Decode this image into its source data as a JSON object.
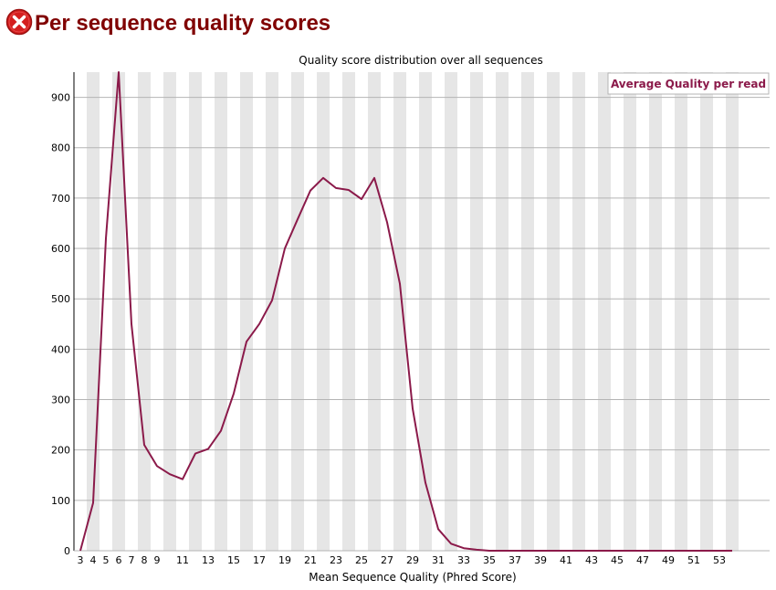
{
  "header": {
    "status_icon": "fail-icon",
    "title": "Per sequence quality scores"
  },
  "colors": {
    "title": "#800000",
    "line": "#8b1a4a",
    "band": "#e6e6e6",
    "grid": "#b4b4b4"
  },
  "chart_data": {
    "type": "line",
    "title": "Quality score distribution over all sequences",
    "xlabel": "Mean Sequence Quality (Phred Score)",
    "ylabel": "",
    "xlim": [
      3,
      54
    ],
    "ylim": [
      0,
      950
    ],
    "grid": true,
    "legend_position": "top-right",
    "x_tick_labels": [
      "3",
      "4",
      "5",
      "6",
      "7",
      "8",
      "9",
      "11",
      "13",
      "15",
      "17",
      "19",
      "21",
      "23",
      "25",
      "27",
      "29",
      "31",
      "33",
      "35",
      "37",
      "39",
      "41",
      "43",
      "45",
      "47",
      "49",
      "51",
      "53"
    ],
    "y_ticks": [
      0,
      100,
      200,
      300,
      400,
      500,
      600,
      700,
      800,
      900
    ],
    "x": [
      3,
      4,
      5,
      6,
      7,
      8,
      9,
      10,
      11,
      12,
      13,
      14,
      15,
      16,
      17,
      18,
      19,
      20,
      21,
      22,
      23,
      24,
      25,
      26,
      27,
      28,
      29,
      30,
      31,
      32,
      33,
      34,
      35,
      36,
      37,
      38,
      39,
      40,
      41,
      42,
      43,
      44,
      45,
      46,
      47,
      48,
      49,
      50,
      51,
      52,
      53,
      54
    ],
    "series": [
      {
        "name": "Average Quality per read",
        "values": [
          0,
          95,
          620,
          950,
          450,
          210,
          168,
          152,
          142,
          193,
          202,
          238,
          312,
          415,
          450,
          497,
          600,
          658,
          715,
          740,
          720,
          716,
          698,
          740,
          652,
          530,
          282,
          135,
          43,
          14,
          5,
          2,
          0,
          0,
          0,
          0,
          0,
          0,
          0,
          0,
          0,
          0,
          0,
          0,
          0,
          0,
          0,
          0,
          0,
          0,
          0,
          0
        ]
      }
    ]
  }
}
